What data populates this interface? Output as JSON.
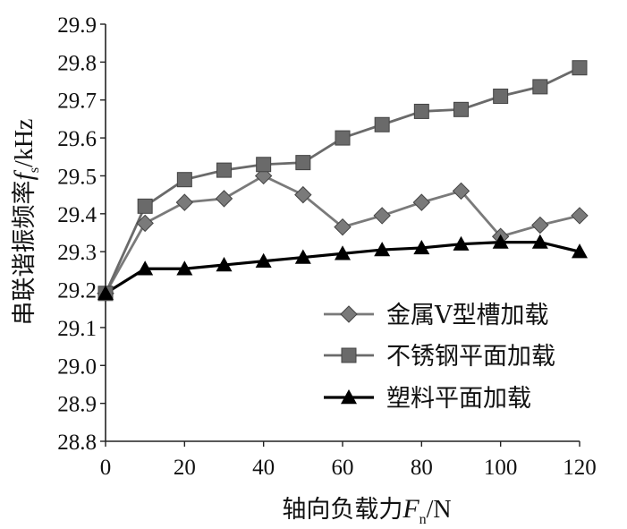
{
  "chart_data": {
    "type": "line",
    "x_ticks": [
      "0",
      "20",
      "40",
      "60",
      "80",
      "100",
      "120"
    ],
    "y_ticks": [
      "28.8",
      "28.9",
      "29.0",
      "29.1",
      "29.2",
      "29.3",
      "29.4",
      "29.5",
      "29.6",
      "29.7",
      "29.8",
      "29.9"
    ],
    "xlim": [
      0,
      120
    ],
    "ylim": [
      28.8,
      29.9
    ],
    "xlabel": {
      "main": "轴向负载力",
      "var": "F",
      "sub": "n",
      "unit": "/N"
    },
    "ylabel": {
      "main": "串联谐振频率",
      "var": "f",
      "sub": "s",
      "unit": "/kHz"
    },
    "grid": false,
    "legend_position": "lower-right",
    "x": [
      0,
      10,
      20,
      30,
      40,
      50,
      60,
      70,
      80,
      90,
      100,
      110,
      120
    ],
    "series": [
      {
        "name": "金属V型槽加载",
        "marker": "diamond",
        "color": "#7a7a7a",
        "values": [
          29.19,
          29.375,
          29.43,
          29.44,
          29.5,
          29.45,
          29.365,
          29.395,
          29.43,
          29.46,
          29.34,
          29.37,
          29.395
        ]
      },
      {
        "name": "不锈钢平面加载",
        "marker": "square",
        "color": "#6a6a6a",
        "values": [
          29.19,
          29.42,
          29.49,
          29.515,
          29.53,
          29.535,
          29.6,
          29.635,
          29.67,
          29.675,
          29.71,
          29.735,
          29.785
        ]
      },
      {
        "name": "塑料平面加载",
        "marker": "triangle",
        "color": "#000000",
        "values": [
          29.19,
          29.255,
          29.255,
          29.265,
          29.275,
          29.285,
          29.295,
          29.305,
          29.31,
          29.32,
          29.325,
          29.325,
          29.3
        ]
      }
    ]
  }
}
